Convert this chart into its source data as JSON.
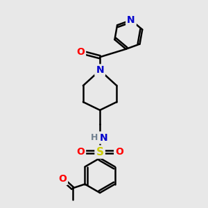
{
  "bg_color": "#e8e8e8",
  "atom_colors": {
    "N": "#0000cc",
    "O": "#ff0000",
    "S": "#cccc00",
    "C": "#000000",
    "H": "#708090"
  },
  "bond_color": "#000000",
  "bond_width": 1.8,
  "fig_width": 3.0,
  "fig_height": 3.0,
  "dpi": 100,
  "xlim": [
    0,
    10
  ],
  "ylim": [
    0,
    10
  ]
}
